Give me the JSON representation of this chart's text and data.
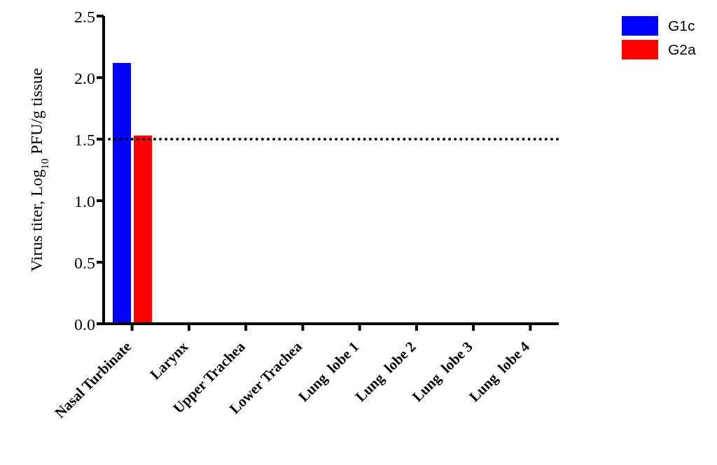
{
  "chart_data": {
    "type": "bar",
    "ylabel": "Virus titer, Log$_{10}$ PFU/g tissue",
    "categories": [
      "Nasal Turbinate",
      "Larynx",
      "Upper Trachea",
      "Lower Trachea",
      "Lung  lobe 1",
      "Lung  lobe 2",
      "Lung  lobe 3",
      "Lung  lobe 4"
    ],
    "series": [
      {
        "name": "G1c",
        "color": "#0000ff",
        "values": [
          2.12,
          null,
          null,
          null,
          null,
          null,
          null,
          null
        ]
      },
      {
        "name": "G2a",
        "color": "#ff0000",
        "values": [
          1.53,
          null,
          null,
          null,
          null,
          null,
          null,
          null
        ]
      }
    ],
    "ylim": [
      0,
      2.5
    ],
    "yticks": [
      {
        "value": 0,
        "label": "0.0"
      },
      {
        "value": 0.5,
        "label": "0.5"
      },
      {
        "value": 1,
        "label": "1.0"
      },
      {
        "value": 1.5,
        "label": "1.5"
      },
      {
        "value": 2,
        "label": "2.0"
      },
      {
        "value": 2.5,
        "label": "2.5"
      }
    ],
    "ref_lines": [
      {
        "axis": "y",
        "value": 1.5,
        "label": null,
        "color": "#000000",
        "line_style": "dotted"
      }
    ],
    "grid": false,
    "legend": "top right"
  }
}
